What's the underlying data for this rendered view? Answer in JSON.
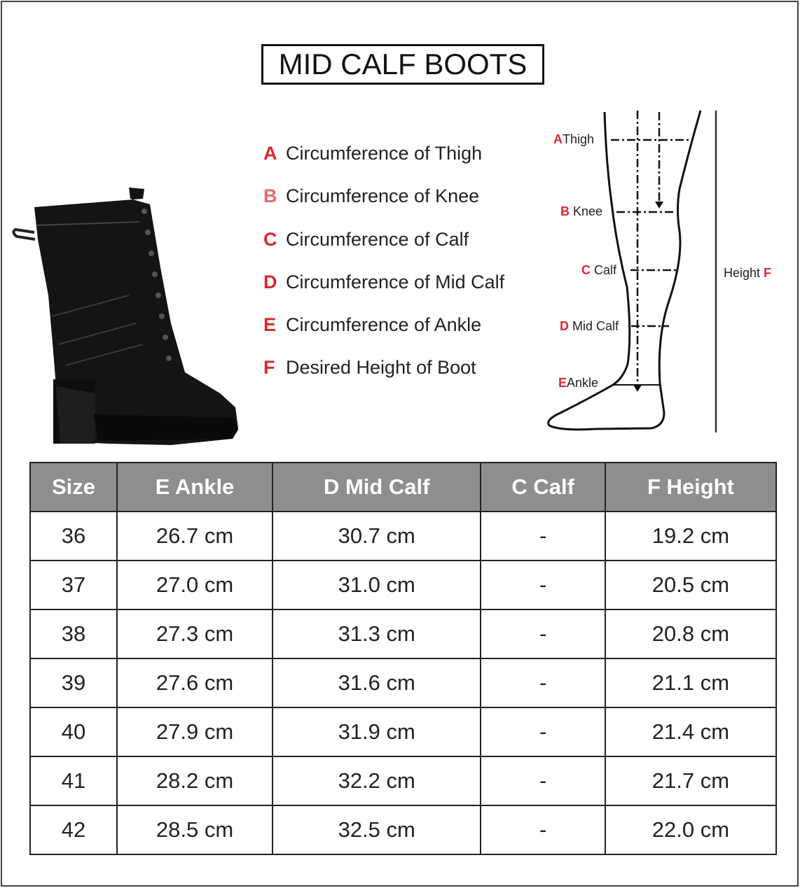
{
  "title": "MID CALF BOOTS",
  "legend": [
    {
      "letter": "A",
      "text": "Circumference of Thigh"
    },
    {
      "letter": "B",
      "text": "Circumference of Knee"
    },
    {
      "letter": "C",
      "text": "Circumference of Calf"
    },
    {
      "letter": "D",
      "text": "Circumference of Mid Calf"
    },
    {
      "letter": "E",
      "text": "Circumference of Ankle"
    },
    {
      "letter": "F",
      "text": "Desired Height of Boot"
    }
  ],
  "diagram": {
    "labels": [
      {
        "letter": "A",
        "text": "Thigh"
      },
      {
        "letter": "B",
        "text": "Knee"
      },
      {
        "letter": "C",
        "text": "Calf"
      },
      {
        "letter": "D",
        "text": "Mid Calf"
      },
      {
        "letter": "E",
        "text": "Ankle"
      }
    ],
    "height_label": {
      "text": "Height",
      "letter": "F"
    }
  },
  "colors": {
    "accent": "#e0282a",
    "header_bg": "#8e8e8e"
  },
  "table": {
    "headers": [
      "Size",
      "E Ankle",
      "D Mid Calf",
      "C Calf",
      "F Height"
    ],
    "rows": [
      [
        "36",
        "26.7 cm",
        "30.7 cm",
        "-",
        "19.2 cm"
      ],
      [
        "37",
        "27.0 cm",
        "31.0 cm",
        "-",
        "20.5 cm"
      ],
      [
        "38",
        "27.3 cm",
        "31.3 cm",
        "-",
        "20.8 cm"
      ],
      [
        "39",
        "27.6 cm",
        "31.6 cm",
        "-",
        "21.1 cm"
      ],
      [
        "40",
        "27.9 cm",
        "31.9 cm",
        "-",
        "21.4 cm"
      ],
      [
        "41",
        "28.2 cm",
        "32.2 cm",
        "-",
        "21.7 cm"
      ],
      [
        "42",
        "28.5 cm",
        "32.5 cm",
        "-",
        "22.0 cm"
      ]
    ]
  }
}
